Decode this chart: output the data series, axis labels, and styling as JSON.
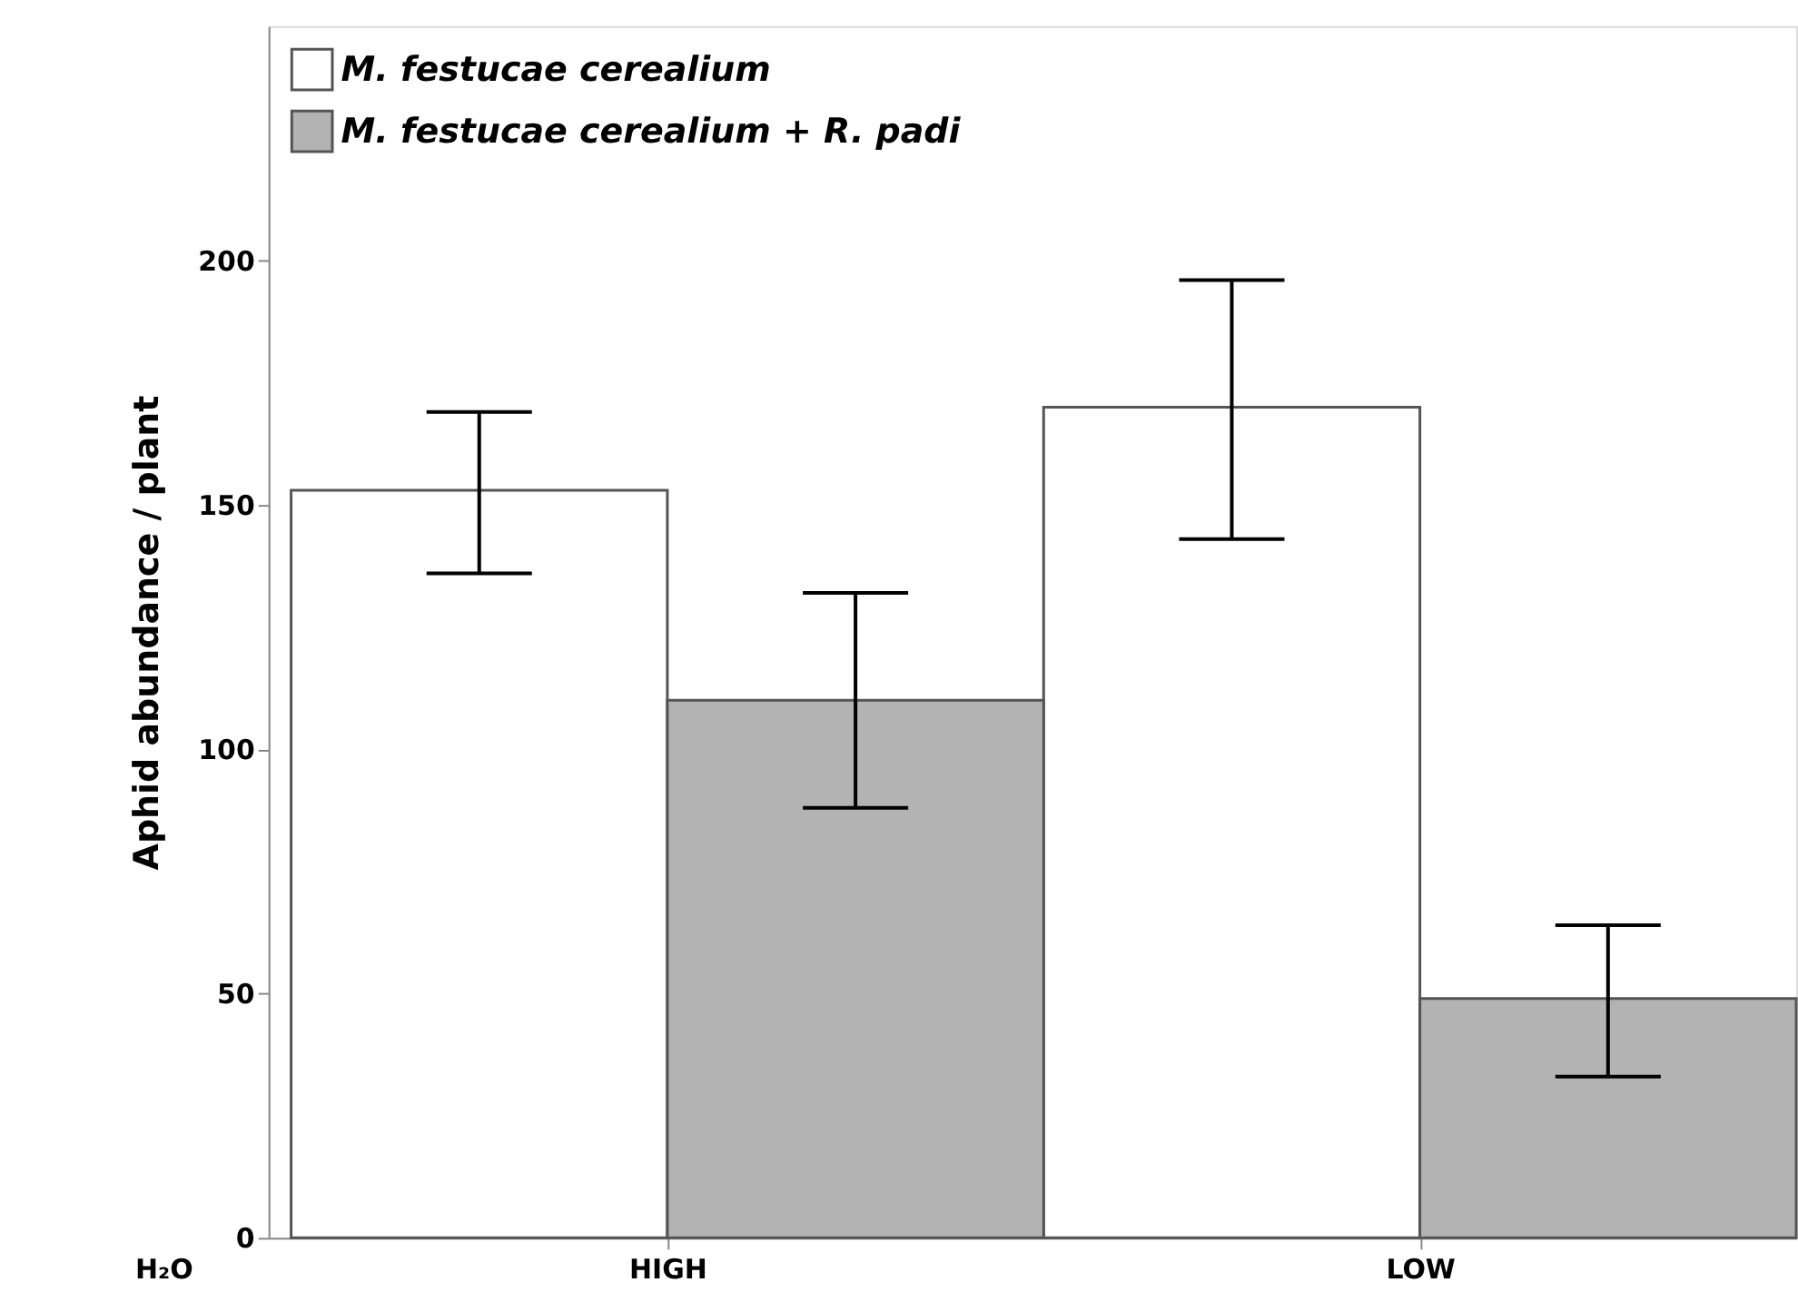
{
  "chart_data": {
    "type": "bar",
    "xlabel": "H₂O",
    "ylabel": "Aphid abundance / plant",
    "categories": [
      "HIGH",
      "LOW"
    ],
    "series": [
      {
        "name": "M. festucae cerealium",
        "color": "#ffffff",
        "values": [
          153,
          170
        ],
        "errors": [
          [
            136,
            169
          ],
          [
            143,
            196
          ]
        ]
      },
      {
        "name": "M. festucae cerealium + R. padi",
        "color": "#b3b3b3",
        "values": [
          110,
          49
        ],
        "errors": [
          [
            88,
            132
          ],
          [
            33,
            64
          ]
        ]
      }
    ],
    "ylim": [
      0,
      248
    ],
    "yticks": [
      0,
      50,
      100,
      150,
      200
    ],
    "grid": false,
    "legend": "top left"
  }
}
